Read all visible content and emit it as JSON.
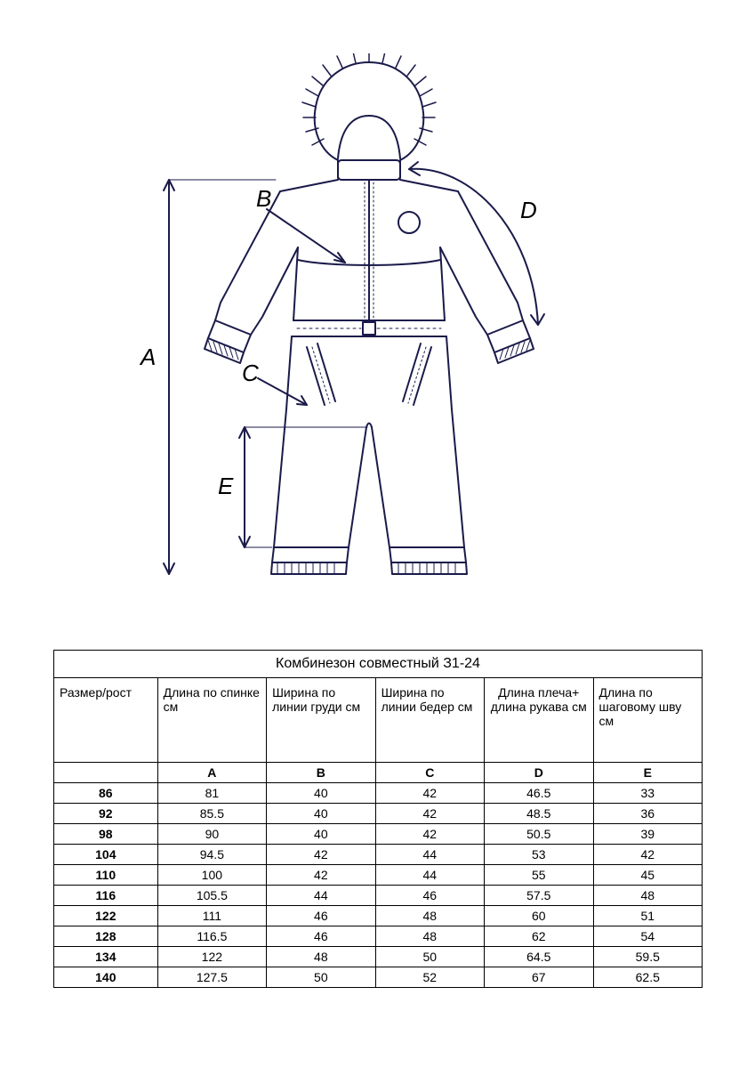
{
  "diagram": {
    "labels": {
      "A": "A",
      "B": "B",
      "C": "C",
      "D": "D",
      "E": "E"
    },
    "stroke_color": "#1a1a4a",
    "stroke_width": 2
  },
  "table": {
    "title": "Комбинезон совместный З1-24",
    "columns": [
      "Размер/рост",
      "Длина по спинке см",
      "Ширина по линии груди см",
      "Ширина по линии бедер см",
      "Длина плеча+ длина рукава см",
      "Длина по шаговому шву см"
    ],
    "letters": [
      "",
      "A",
      "B",
      "C",
      "D",
      "E"
    ],
    "rows": [
      [
        "86",
        "81",
        "40",
        "42",
        "46.5",
        "33"
      ],
      [
        "92",
        "85.5",
        "40",
        "42",
        "48.5",
        "36"
      ],
      [
        "98",
        "90",
        "40",
        "42",
        "50.5",
        "39"
      ],
      [
        "104",
        "94.5",
        "42",
        "44",
        "53",
        "42"
      ],
      [
        "110",
        "100",
        "42",
        "44",
        "55",
        "45"
      ],
      [
        "116",
        "105.5",
        "44",
        "46",
        "57.5",
        "48"
      ],
      [
        "122",
        "111",
        "46",
        "48",
        "60",
        "51"
      ],
      [
        "128",
        "116.5",
        "46",
        "48",
        "62",
        "54"
      ],
      [
        "134",
        "122",
        "48",
        "50",
        "64.5",
        "59.5"
      ],
      [
        "140",
        "127.5",
        "50",
        "52",
        "67",
        "62.5"
      ]
    ],
    "border_color": "#000000",
    "font_size_title": 16,
    "font_size_body": 14
  }
}
